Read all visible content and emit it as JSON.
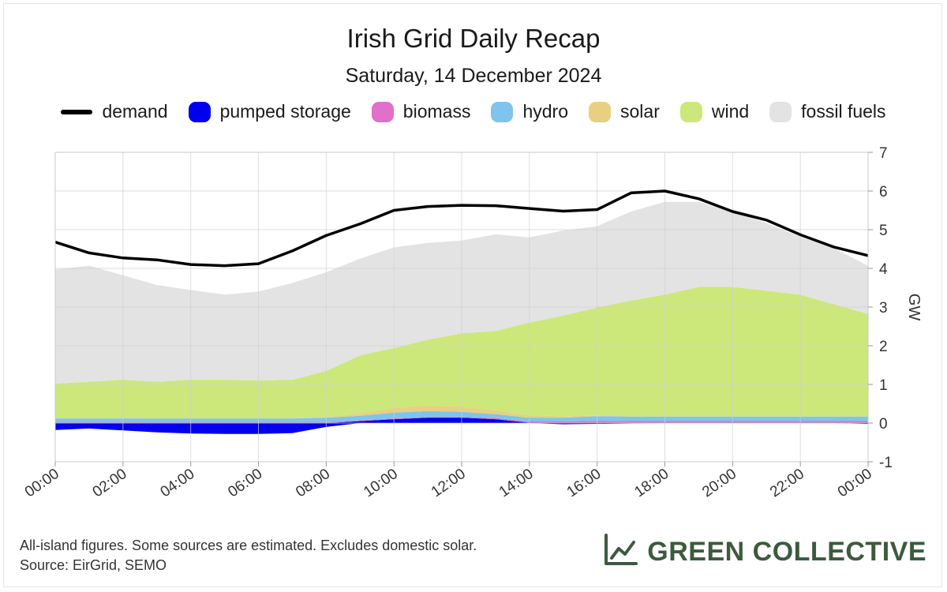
{
  "chart_data": {
    "type": "area",
    "title": "Irish Grid Daily Recap",
    "subtitle": "Saturday, 14 December 2024",
    "ylabel": "GW",
    "xlabel": "",
    "ylim": [
      -1,
      7
    ],
    "yticks": [
      "7",
      "6",
      "5",
      "4",
      "3",
      "2",
      "1",
      "0",
      "-1"
    ],
    "xticks": [
      "00:00",
      "02:00",
      "04:00",
      "06:00",
      "08:00",
      "10:00",
      "12:00",
      "14:00",
      "16:00",
      "18:00",
      "20:00",
      "22:00",
      "00:00"
    ],
    "x_hours": [
      0,
      1,
      2,
      3,
      4,
      5,
      6,
      7,
      8,
      9,
      10,
      11,
      12,
      13,
      14,
      15,
      16,
      17,
      18,
      19,
      20,
      21,
      22,
      23,
      24
    ],
    "grid": true,
    "legend_position": "top",
    "series": [
      {
        "name": "demand",
        "kind": "line",
        "color": "#000000",
        "values": [
          4.68,
          4.4,
          4.27,
          4.22,
          4.1,
          4.07,
          4.12,
          4.45,
          4.85,
          5.15,
          5.5,
          5.6,
          5.63,
          5.62,
          5.55,
          5.48,
          5.52,
          5.95,
          6.0,
          5.8,
          5.47,
          5.25,
          4.87,
          4.55,
          4.33
        ]
      },
      {
        "name": "pumped storage",
        "kind": "area",
        "color": "#0000ee",
        "values": [
          -0.18,
          -0.14,
          -0.19,
          -0.24,
          -0.27,
          -0.28,
          -0.28,
          -0.26,
          -0.1,
          0.05,
          0.1,
          0.14,
          0.14,
          0.1,
          0.01,
          -0.03,
          -0.02,
          -0.01,
          0.0,
          0.0,
          0.0,
          0.0,
          0.0,
          0.0,
          -0.02
        ]
      },
      {
        "name": "biomass",
        "kind": "area",
        "color": "#e070c8",
        "values": [
          0.02,
          0.02,
          0.02,
          0.02,
          0.02,
          0.02,
          0.02,
          0.02,
          0.02,
          0.02,
          0.02,
          0.02,
          0.02,
          0.03,
          0.03,
          0.04,
          0.06,
          0.05,
          0.05,
          0.05,
          0.05,
          0.05,
          0.05,
          0.05,
          0.05
        ]
      },
      {
        "name": "hydro",
        "kind": "area",
        "color": "#7ec4ec",
        "values": [
          0.1,
          0.1,
          0.1,
          0.1,
          0.1,
          0.1,
          0.1,
          0.1,
          0.12,
          0.12,
          0.15,
          0.15,
          0.13,
          0.1,
          0.1,
          0.1,
          0.12,
          0.12,
          0.12,
          0.12,
          0.12,
          0.12,
          0.12,
          0.12,
          0.12
        ]
      },
      {
        "name": "solar",
        "kind": "area",
        "color": "#e8d080",
        "values": [
          0,
          0,
          0,
          0,
          0,
          0,
          0,
          0,
          0.01,
          0.06,
          0.12,
          0.15,
          0.13,
          0.1,
          0.06,
          0.04,
          0.01,
          0,
          0,
          0,
          0,
          0,
          0,
          0,
          0
        ]
      },
      {
        "name": "wind",
        "kind": "area",
        "color": "#cce87a",
        "values": [
          0.9,
          0.95,
          1.0,
          0.95,
          1.0,
          1.0,
          0.98,
          1.0,
          1.2,
          1.5,
          1.55,
          1.7,
          1.9,
          2.05,
          2.4,
          2.6,
          2.8,
          3.0,
          3.15,
          3.35,
          3.35,
          3.25,
          3.15,
          2.9,
          2.65
        ]
      },
      {
        "name": "fossil fuels",
        "kind": "area",
        "color": "#e3e3e3",
        "values": [
          2.95,
          3.0,
          2.7,
          2.5,
          2.32,
          2.2,
          2.3,
          2.5,
          2.55,
          2.5,
          2.6,
          2.5,
          2.4,
          2.5,
          2.2,
          2.2,
          2.1,
          2.3,
          2.4,
          2.2,
          1.95,
          1.75,
          1.5,
          1.45,
          1.25
        ]
      }
    ]
  },
  "footer": {
    "note_line1": "All-island figures. Some sources are estimated. Excludes domestic solar.",
    "note_line2": "Source: EirGrid, SEMO",
    "brand": "GREEN COLLECTIVE",
    "brand_icon": "line-chart-icon",
    "brand_color": "#3d5a3f"
  }
}
